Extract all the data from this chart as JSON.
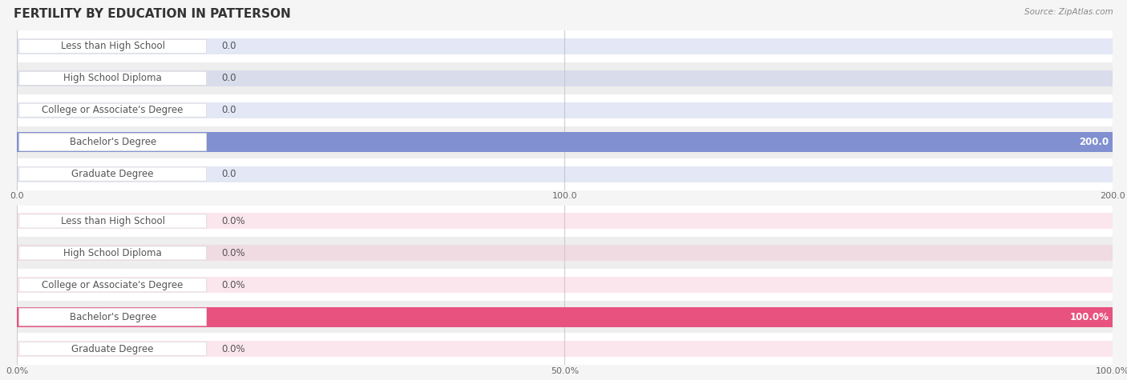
{
  "title": "FERTILITY BY EDUCATION IN PATTERSON",
  "source": "Source: ZipAtlas.com",
  "categories": [
    "Less than High School",
    "High School Diploma",
    "College or Associate's Degree",
    "Bachelor's Degree",
    "Graduate Degree"
  ],
  "chart1": {
    "values": [
      0.0,
      0.0,
      0.0,
      200.0,
      0.0
    ],
    "xlim": [
      0,
      200
    ],
    "xticks": [
      0.0,
      100.0,
      200.0
    ],
    "xtick_labels": [
      "0.0",
      "100.0",
      "200.0"
    ],
    "bar_color_normal": "#b0bce8",
    "bar_color_highlight": "#8090d0",
    "label_value_suffix": "",
    "highlight_index": 3
  },
  "chart2": {
    "values": [
      0.0,
      0.0,
      0.0,
      100.0,
      0.0
    ],
    "xlim": [
      0,
      100
    ],
    "xticks": [
      0.0,
      50.0,
      100.0
    ],
    "xtick_labels": [
      "0.0%",
      "50.0%",
      "100.0%"
    ],
    "bar_color_normal": "#f5b8cc",
    "bar_color_highlight": "#e8527f",
    "label_value_suffix": "%",
    "highlight_index": 3
  },
  "background_color": "#f5f5f5",
  "bar_bg_color_even": "#ffffff",
  "bar_bg_color_odd": "#eeeeee",
  "label_box_facecolor": "#ffffff",
  "label_box_edgecolor": "#dddddd",
  "label_text_color": "#555555",
  "value_text_color": "#555555",
  "value_text_color_highlight": "#ffffff",
  "title_color": "#333333",
  "source_color": "#888888",
  "grid_color": "#cccccc",
  "title_fontsize": 11,
  "label_fontsize": 8.5,
  "value_fontsize": 8.5,
  "tick_fontsize": 8,
  "bar_height": 0.5,
  "highlight_bar_height": 0.62
}
